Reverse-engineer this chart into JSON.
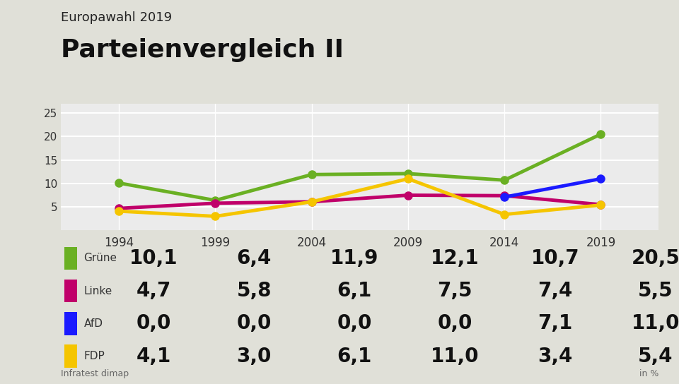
{
  "title_small": "Europawahl 2019",
  "title_large": "Parteienvergleich II",
  "source": "Infratest dimap",
  "unit": "in %",
  "years": [
    1994,
    1999,
    2004,
    2009,
    2014,
    2019
  ],
  "series": [
    {
      "name": "Grüne",
      "color": "#6ab023",
      "values": [
        10.1,
        6.4,
        11.9,
        12.1,
        10.7,
        20.5
      ]
    },
    {
      "name": "Linke",
      "color": "#c0006a",
      "values": [
        4.7,
        5.8,
        6.1,
        7.5,
        7.4,
        5.5
      ]
    },
    {
      "name": "AfD",
      "color": "#1a1aff",
      "values": [
        0.0,
        0.0,
        0.0,
        0.0,
        7.1,
        11.0
      ]
    },
    {
      "name": "FDP",
      "color": "#f5c500",
      "values": [
        4.1,
        3.0,
        6.1,
        11.0,
        3.4,
        5.4
      ]
    }
  ],
  "ylim": [
    0,
    27
  ],
  "yticks": [
    5,
    10,
    15,
    20,
    25
  ],
  "background_color": "#e0e0d8",
  "plot_background_color": "#ebebе4",
  "grid_color": "#ffffff",
  "title_small_fontsize": 13,
  "title_large_fontsize": 26,
  "legend_name_fontsize": 11,
  "legend_value_fontsize": 20,
  "axis_fontsize": 11
}
